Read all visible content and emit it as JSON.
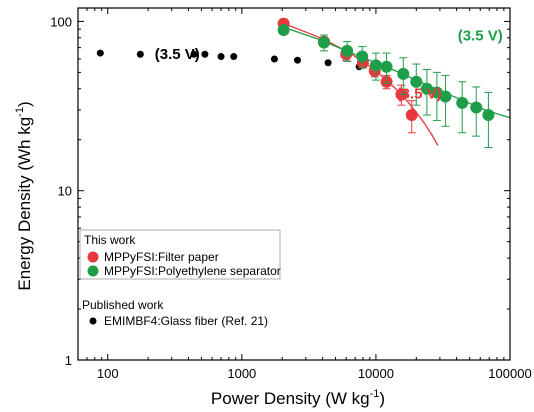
{
  "chart_data": {
    "type": "scatter",
    "xscale": "log",
    "yscale": "log",
    "xlim": [
      60,
      100000
    ],
    "ylim": [
      1,
      120
    ],
    "xlabel": "Power Density (W kg",
    "xlabel_sup": "-1",
    "xlabel_end": ")",
    "ylabel": "Energy Density (Wh kg",
    "ylabel_sup": "-1",
    "ylabel_end": ")",
    "xticks": [
      {
        "value": 100,
        "label": "100"
      },
      {
        "value": 1000,
        "label": "1000"
      },
      {
        "value": 10000,
        "label": "10000"
      },
      {
        "value": 100000,
        "label": "100000"
      }
    ],
    "yticks": [
      {
        "value": 1,
        "label": "1"
      },
      {
        "value": 10,
        "label": "10"
      },
      {
        "value": 100,
        "label": "100"
      }
    ],
    "series": [
      {
        "name": "EMIMBF4:Glass fiber (Ref. 21)",
        "group": "Published work",
        "color": "#000000",
        "marker_radius": 3.5,
        "x": [
          88,
          175,
          440,
          530,
          700,
          870,
          1750,
          2600,
          4400,
          7500
        ],
        "y": [
          65,
          64,
          64,
          64,
          62,
          62,
          60,
          59,
          57,
          54
        ],
        "yerr": null
      },
      {
        "name": "MPPyFSI:Filter paper",
        "group": "This work",
        "color": "#e8383d",
        "marker_radius": 6,
        "x": [
          2050,
          4100,
          6000,
          8000,
          9800,
          12000,
          15500,
          18500
        ],
        "y": [
          97,
          76,
          64,
          57,
          51,
          44,
          37,
          28
        ],
        "yerr": [
          0,
          0,
          5,
          4,
          4,
          4,
          5,
          6
        ]
      },
      {
        "name": "MPPyFSI:Polyethylene separator",
        "group": "This work",
        "color": "#1f9e49",
        "marker_radius": 6,
        "x": [
          2050,
          4100,
          6100,
          7900,
          10000,
          12000,
          16000,
          20000,
          24000,
          28500,
          33000,
          44000,
          56000,
          69000
        ],
        "y": [
          89,
          75,
          67,
          62,
          55,
          54,
          49,
          44,
          40,
          38,
          36,
          33,
          31,
          28
        ],
        "yerr": [
          4,
          8,
          9,
          9,
          10,
          11,
          12,
          12,
          12,
          12,
          12,
          11,
          10,
          10
        ]
      }
    ],
    "fit_lines": [
      {
        "color": "#e8383d",
        "x": [
          2000,
          4000,
          6000,
          8000,
          10000,
          12000,
          14500,
          17000,
          20000,
          23000,
          26000,
          29000
        ],
        "y": [
          98,
          79,
          67,
          58,
          51,
          45,
          39,
          34,
          29,
          25,
          21.5,
          18.5
        ]
      },
      {
        "color": "#1f9e49",
        "x": [
          2000,
          4000,
          6000,
          8000,
          10000,
          14000,
          20000,
          30000,
          45000,
          65000,
          80000,
          100000
        ],
        "y": [
          93,
          77,
          67,
          61,
          57,
          51,
          45,
          39,
          34,
          30,
          28.5,
          27
        ]
      }
    ],
    "annotations": [
      {
        "text": "(3.5 V)",
        "color": "#000000",
        "x": 330,
        "y": 60
      },
      {
        "text": "(3.5 V)",
        "color": "#1f9e49",
        "x": 60000,
        "y": 77
      },
      {
        "text": "(3.5 V)",
        "color": "#e8383d",
        "x": 21000,
        "y": 35
      }
    ],
    "legend": {
      "placement": "bottom-left",
      "group1_title": "This work",
      "group2_title": "Published work"
    }
  }
}
